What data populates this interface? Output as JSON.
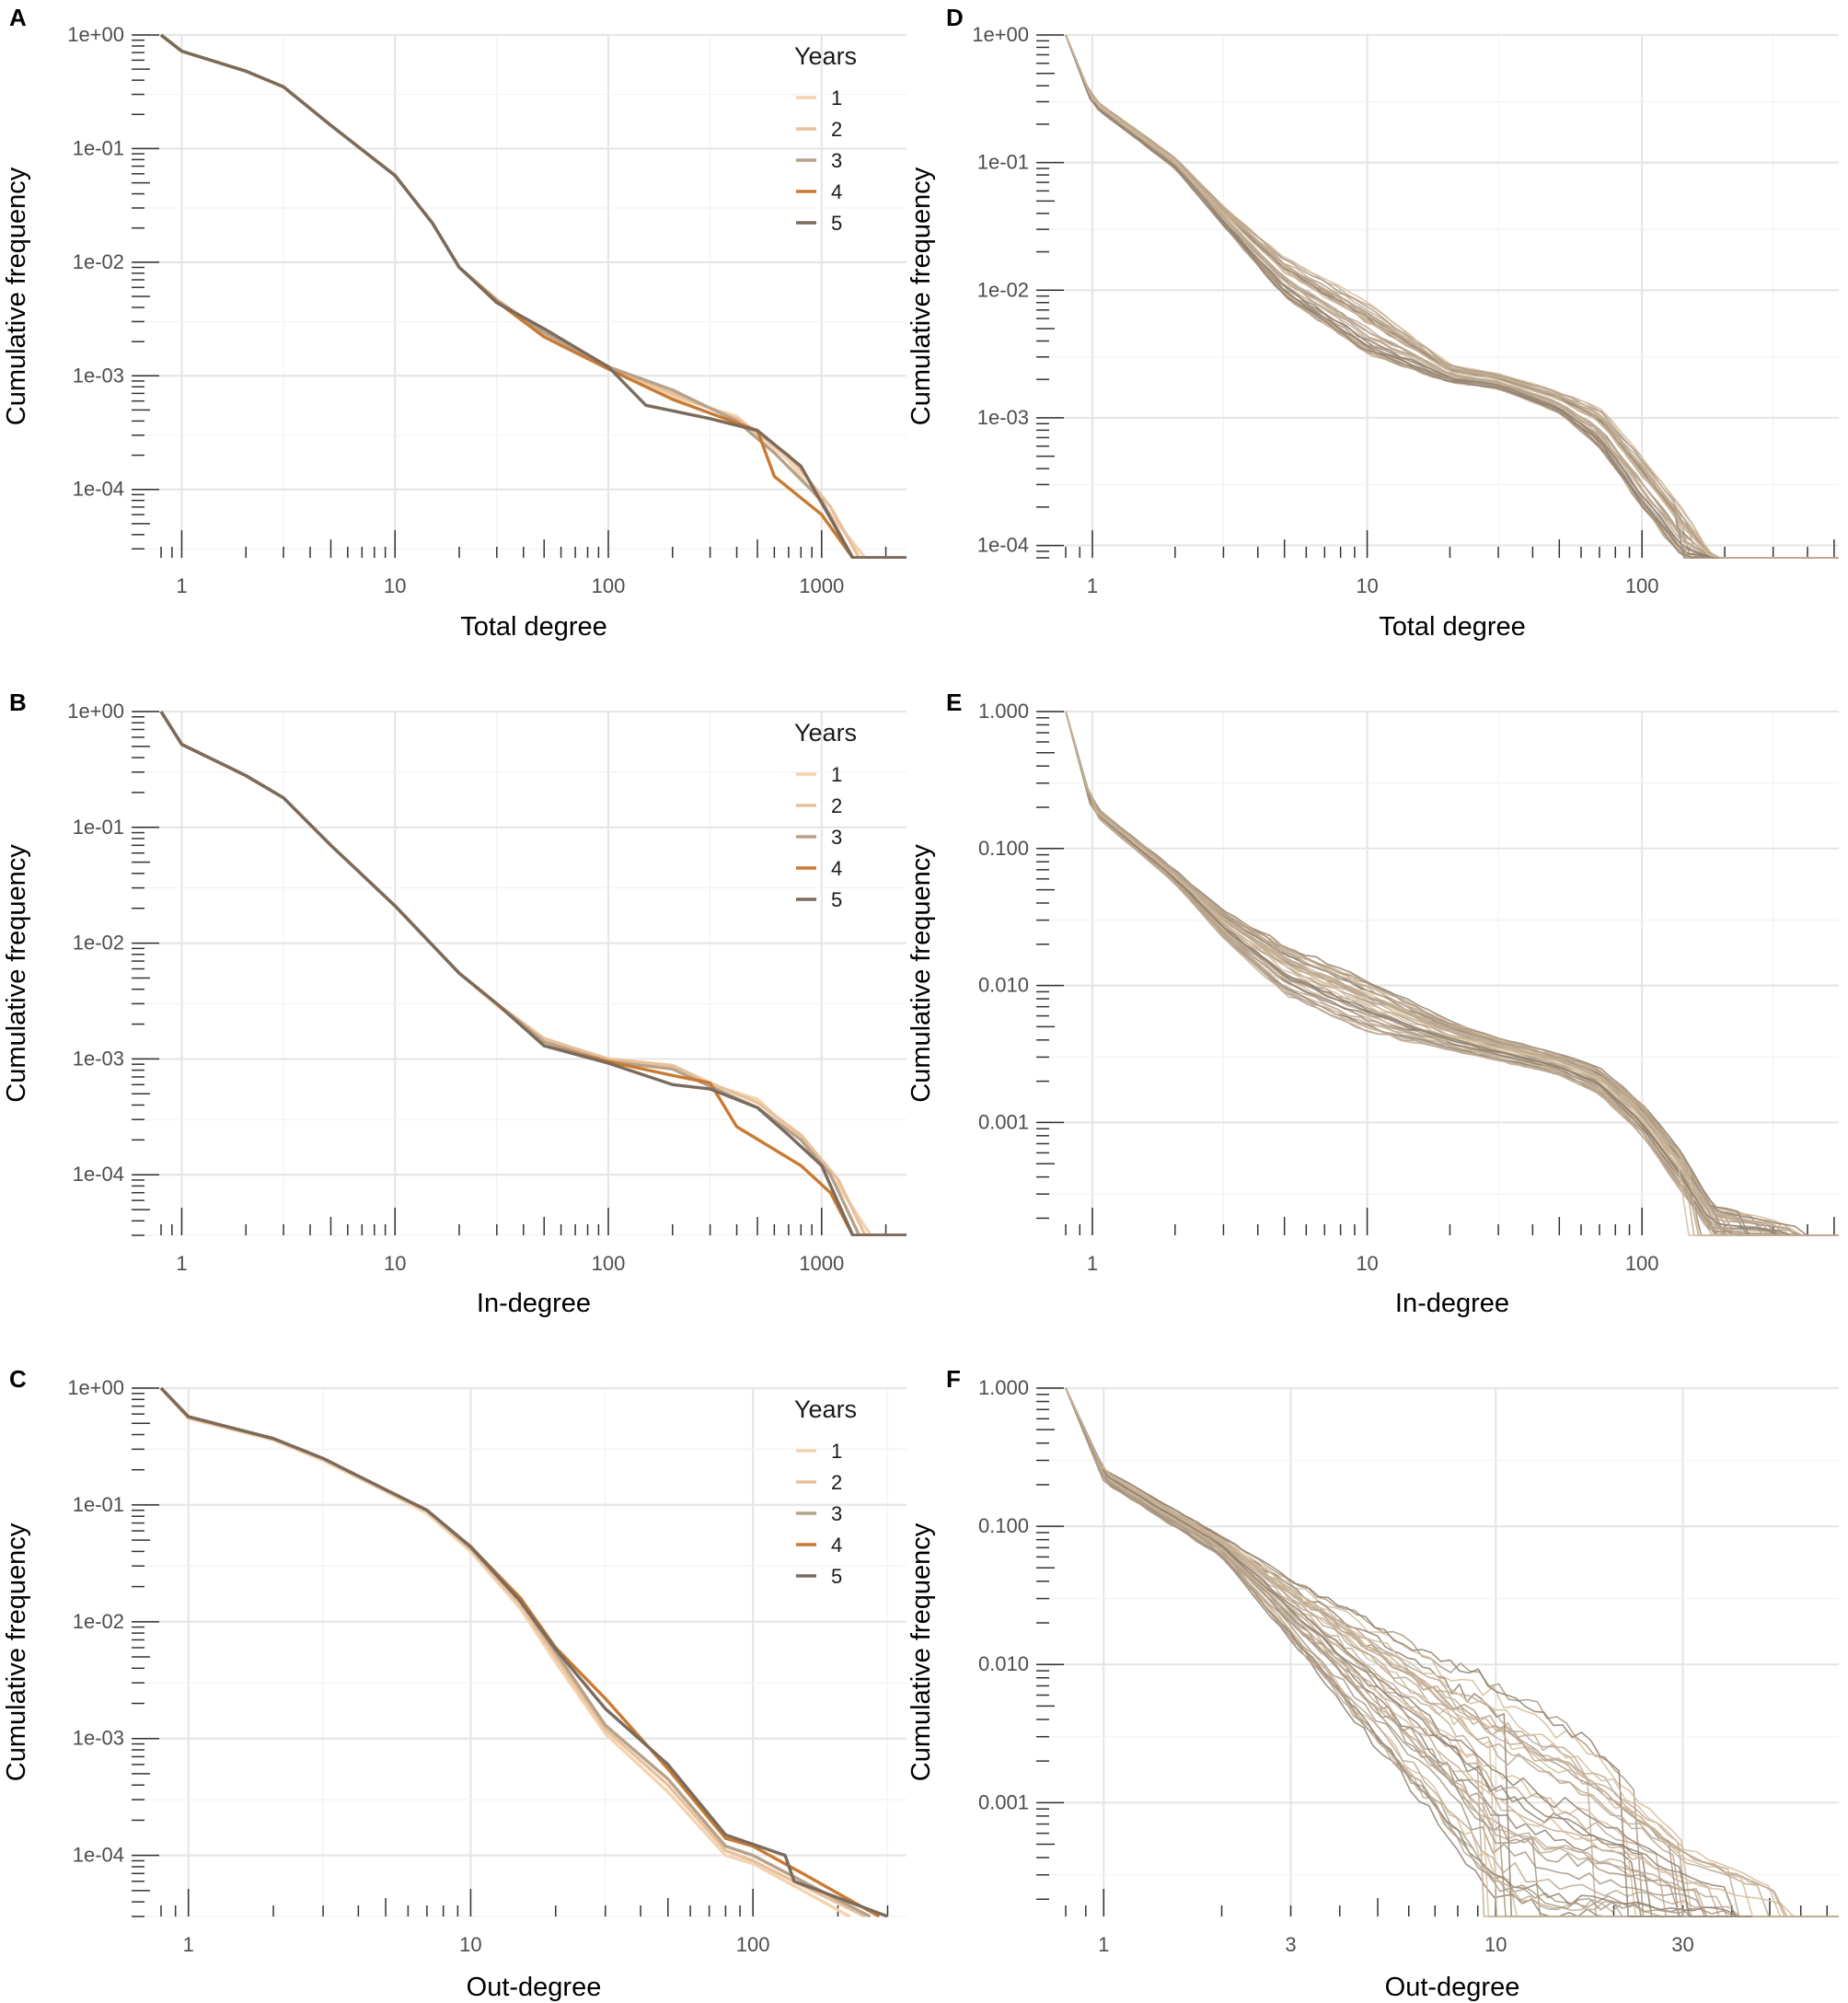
{
  "chart_data": [
    {
      "panel": "A",
      "type": "line",
      "xscale": "log",
      "yscale": "log",
      "xlabel": "Total degree",
      "ylabel": "Cumulative frequency",
      "xlim": [
        0.8,
        2500
      ],
      "ylim": [
        2.5e-05,
        1
      ],
      "x_ticks": [
        {
          "v": 1,
          "label": "1"
        },
        {
          "v": 10,
          "label": "10"
        },
        {
          "v": 100,
          "label": "100"
        },
        {
          "v": 1000,
          "label": "1000"
        }
      ],
      "y_ticks": [
        {
          "v": 1,
          "label": "1e+00"
        },
        {
          "v": 0.1,
          "label": "1e-01"
        },
        {
          "v": 0.01,
          "label": "1e-02"
        },
        {
          "v": 0.001,
          "label": "1e-03"
        },
        {
          "v": 0.0001,
          "label": "1e-04"
        }
      ],
      "legend": {
        "title": "Years",
        "position": "top-right"
      },
      "series": [
        {
          "name": "1",
          "color": "#f3d3b0",
          "x": [
            0.8,
            1,
            2,
            3,
            5,
            10,
            15,
            20,
            30,
            50,
            100,
            200,
            400,
            700,
            1100,
            1600,
            2500
          ],
          "y": [
            1,
            0.72,
            0.48,
            0.35,
            0.16,
            0.058,
            0.022,
            0.009,
            0.0046,
            0.0023,
            0.00115,
            0.00066,
            0.00044,
            0.00018,
            6e-05,
            2.5e-05,
            2.5e-05
          ]
        },
        {
          "name": "2",
          "color": "#e8c09a",
          "x": [
            0.8,
            1,
            2,
            3,
            5,
            10,
            15,
            20,
            30,
            50,
            100,
            200,
            400,
            700,
            1100,
            1500,
            2500
          ],
          "y": [
            1,
            0.72,
            0.48,
            0.35,
            0.16,
            0.058,
            0.022,
            0.009,
            0.0047,
            0.0024,
            0.0012,
            0.0007,
            0.00042,
            0.0002,
            7e-05,
            2.5e-05,
            2.5e-05
          ]
        },
        {
          "name": "3",
          "color": "#b6a18a",
          "x": [
            0.8,
            1,
            2,
            3,
            5,
            10,
            15,
            20,
            30,
            50,
            100,
            200,
            400,
            600,
            1000,
            1400,
            2500
          ],
          "y": [
            1,
            0.72,
            0.48,
            0.35,
            0.16,
            0.058,
            0.022,
            0.009,
            0.0046,
            0.0024,
            0.0012,
            0.00075,
            0.0004,
            0.00021,
            8e-05,
            2.5e-05,
            2.5e-05
          ]
        },
        {
          "name": "4",
          "color": "#c97a32",
          "x": [
            0.8,
            1,
            2,
            3,
            5,
            10,
            15,
            20,
            30,
            50,
            100,
            200,
            500,
            600,
            1000,
            1400,
            2500
          ],
          "y": [
            1,
            0.72,
            0.48,
            0.35,
            0.16,
            0.058,
            0.022,
            0.009,
            0.0045,
            0.0022,
            0.00115,
            0.00062,
            0.00033,
            0.00013,
            6e-05,
            2.5e-05,
            2.5e-05
          ]
        },
        {
          "name": "5",
          "color": "#7a6b5d",
          "x": [
            0.8,
            1,
            2,
            3,
            5,
            10,
            15,
            20,
            30,
            50,
            100,
            150,
            300,
            500,
            800,
            1400,
            2500
          ],
          "y": [
            1,
            0.72,
            0.48,
            0.35,
            0.16,
            0.058,
            0.022,
            0.009,
            0.0044,
            0.0026,
            0.0012,
            0.00055,
            0.00042,
            0.00033,
            0.00016,
            2.5e-05,
            2.5e-05
          ]
        }
      ]
    },
    {
      "panel": "B",
      "type": "line",
      "xscale": "log",
      "yscale": "log",
      "xlabel": "In-degree",
      "ylabel": "Cumulative frequency",
      "xlim": [
        0.8,
        2500
      ],
      "ylim": [
        3e-05,
        1
      ],
      "x_ticks": [
        {
          "v": 1,
          "label": "1"
        },
        {
          "v": 10,
          "label": "10"
        },
        {
          "v": 100,
          "label": "100"
        },
        {
          "v": 1000,
          "label": "1000"
        }
      ],
      "y_ticks": [
        {
          "v": 1,
          "label": "1e+00"
        },
        {
          "v": 0.1,
          "label": "1e-01"
        },
        {
          "v": 0.01,
          "label": "1e-02"
        },
        {
          "v": 0.001,
          "label": "1e-03"
        },
        {
          "v": 0.0001,
          "label": "1e-04"
        }
      ],
      "legend": {
        "title": "Years",
        "position": "top-right"
      },
      "series": [
        {
          "name": "1",
          "color": "#f3d3b0",
          "x": [
            0.8,
            1,
            2,
            3,
            5,
            10,
            20,
            30,
            50,
            100,
            200,
            300,
            500,
            800,
            1200,
            1700,
            2500
          ],
          "y": [
            1,
            0.52,
            0.28,
            0.18,
            0.07,
            0.021,
            0.0055,
            0.0029,
            0.0014,
            0.00098,
            0.00085,
            0.0006,
            0.00045,
            0.0002,
            8e-05,
            3e-05,
            3e-05
          ]
        },
        {
          "name": "2",
          "color": "#e8c09a",
          "x": [
            0.8,
            1,
            2,
            3,
            5,
            10,
            20,
            30,
            50,
            100,
            200,
            300,
            500,
            800,
            1200,
            1600,
            2500
          ],
          "y": [
            1,
            0.52,
            0.28,
            0.18,
            0.07,
            0.021,
            0.0055,
            0.003,
            0.0015,
            0.001,
            0.00088,
            0.00062,
            0.00042,
            0.00022,
            9e-05,
            3e-05,
            3e-05
          ]
        },
        {
          "name": "3",
          "color": "#b6a18a",
          "x": [
            0.8,
            1,
            2,
            3,
            5,
            10,
            20,
            30,
            50,
            100,
            200,
            300,
            500,
            800,
            1100,
            1500,
            2500
          ],
          "y": [
            1,
            0.52,
            0.28,
            0.18,
            0.07,
            0.021,
            0.0055,
            0.003,
            0.0014,
            0.00095,
            0.00082,
            0.00058,
            0.00038,
            0.0002,
            0.0001,
            3e-05,
            3e-05
          ]
        },
        {
          "name": "4",
          "color": "#c97a32",
          "x": [
            0.8,
            1,
            2,
            3,
            5,
            10,
            20,
            30,
            50,
            100,
            200,
            300,
            400,
            800,
            1100,
            1400,
            2500
          ],
          "y": [
            1,
            0.52,
            0.28,
            0.18,
            0.07,
            0.021,
            0.0055,
            0.003,
            0.0013,
            0.00095,
            0.00072,
            0.00062,
            0.00026,
            0.00012,
            7e-05,
            3e-05,
            3e-05
          ]
        },
        {
          "name": "5",
          "color": "#7a6b5d",
          "x": [
            0.8,
            1,
            2,
            3,
            5,
            10,
            20,
            30,
            50,
            100,
            200,
            300,
            500,
            700,
            1000,
            1400,
            2500
          ],
          "y": [
            1,
            0.52,
            0.28,
            0.18,
            0.07,
            0.021,
            0.0055,
            0.003,
            0.0013,
            0.00092,
            0.0006,
            0.00055,
            0.00038,
            0.00022,
            0.00012,
            3e-05,
            3e-05
          ]
        }
      ]
    },
    {
      "panel": "C",
      "type": "line",
      "xscale": "log",
      "yscale": "log",
      "xlabel": "Out-degree",
      "ylabel": "Cumulative frequency",
      "xlim": [
        0.8,
        350
      ],
      "ylim": [
        3e-05,
        1
      ],
      "x_ticks": [
        {
          "v": 1,
          "label": "1"
        },
        {
          "v": 10,
          "label": "10"
        },
        {
          "v": 100,
          "label": "100"
        }
      ],
      "y_ticks": [
        {
          "v": 1,
          "label": "1e+00"
        },
        {
          "v": 0.1,
          "label": "1e-01"
        },
        {
          "v": 0.01,
          "label": "1e-02"
        },
        {
          "v": 0.001,
          "label": "1e-03"
        },
        {
          "v": 0.0001,
          "label": "1e-04"
        }
      ],
      "legend": {
        "title": "Years",
        "position": "top-right"
      },
      "series": [
        {
          "name": "1",
          "color": "#f3d3b0",
          "x": [
            0.8,
            1,
            2,
            3,
            5,
            7,
            10,
            15,
            20,
            30,
            50,
            80,
            100,
            150,
            220
          ],
          "y": [
            1,
            0.55,
            0.36,
            0.24,
            0.13,
            0.085,
            0.04,
            0.013,
            0.0045,
            0.0011,
            0.00035,
            0.0001,
            8.5e-05,
            5e-05,
            3e-05
          ]
        },
        {
          "name": "2",
          "color": "#e8c09a",
          "x": [
            0.8,
            1,
            2,
            3,
            5,
            7,
            10,
            15,
            20,
            30,
            50,
            80,
            100,
            150,
            250
          ],
          "y": [
            1,
            0.56,
            0.37,
            0.25,
            0.135,
            0.09,
            0.042,
            0.014,
            0.005,
            0.0012,
            0.0004,
            0.00011,
            9e-05,
            5.5e-05,
            3e-05
          ]
        },
        {
          "name": "3",
          "color": "#b6a18a",
          "x": [
            0.8,
            1,
            2,
            3,
            5,
            7,
            10,
            15,
            20,
            30,
            50,
            80,
            100,
            150,
            260
          ],
          "y": [
            1,
            0.57,
            0.37,
            0.25,
            0.135,
            0.09,
            0.043,
            0.015,
            0.0055,
            0.0013,
            0.00045,
            0.00012,
            0.0001,
            6e-05,
            3e-05
          ]
        },
        {
          "name": "4",
          "color": "#c97a32",
          "x": [
            0.8,
            1,
            2,
            3,
            5,
            7,
            10,
            15,
            20,
            30,
            50,
            80,
            100,
            150,
            280
          ],
          "y": [
            1,
            0.57,
            0.37,
            0.25,
            0.135,
            0.09,
            0.044,
            0.016,
            0.006,
            0.0022,
            0.00055,
            0.00014,
            0.00012,
            7e-05,
            3e-05
          ]
        },
        {
          "name": "5",
          "color": "#7a6b5d",
          "x": [
            0.8,
            1,
            2,
            3,
            5,
            7,
            10,
            15,
            20,
            30,
            50,
            80,
            130,
            140,
            300
          ],
          "y": [
            1,
            0.57,
            0.37,
            0.25,
            0.135,
            0.09,
            0.044,
            0.015,
            0.0058,
            0.0018,
            0.0006,
            0.00015,
            0.0001,
            6e-05,
            3e-05
          ]
        }
      ]
    },
    {
      "panel": "D",
      "type": "line",
      "xscale": "log",
      "yscale": "log",
      "xlabel": "Total degree",
      "ylabel": "Cumulative frequency",
      "xlim": [
        0.8,
        520
      ],
      "ylim": [
        8e-05,
        1
      ],
      "x_ticks": [
        {
          "v": 1,
          "label": "1"
        },
        {
          "v": 10,
          "label": "10"
        },
        {
          "v": 100,
          "label": "100"
        }
      ],
      "y_ticks": [
        {
          "v": 1,
          "label": "1e+00"
        },
        {
          "v": 0.1,
          "label": "1e-01"
        },
        {
          "v": 0.01,
          "label": "1e-02"
        },
        {
          "v": 0.001,
          "label": "1e-03"
        },
        {
          "v": 0.0001,
          "label": "1e-04"
        }
      ],
      "bundle": {
        "n_lines": 40,
        "colors": [
          "#a89683",
          "#bca890",
          "#8e7f70",
          "#d6bc9a",
          "#c0ab94"
        ],
        "x": [
          0.8,
          1,
          2,
          3,
          5,
          10,
          20,
          30,
          50,
          70,
          100,
          140,
          180,
          520
        ],
        "y_low": [
          1,
          0.28,
          0.09,
          0.032,
          0.009,
          0.0032,
          0.0019,
          0.0017,
          0.0011,
          0.0006,
          0.0002,
          8e-05,
          8e-05,
          8e-05
        ],
        "y_high": [
          1,
          0.32,
          0.11,
          0.045,
          0.018,
          0.008,
          0.0026,
          0.0022,
          0.0016,
          0.0012,
          0.0005,
          0.0002,
          8e-05,
          8e-05
        ],
        "x_end_range": [
          140,
          400
        ]
      }
    },
    {
      "panel": "E",
      "type": "line",
      "xscale": "log",
      "yscale": "log",
      "xlabel": "In-degree",
      "ylabel": "Cumulative frequency",
      "xlim": [
        0.8,
        520
      ],
      "ylim": [
        0.00015,
        1
      ],
      "x_ticks": [
        {
          "v": 1,
          "label": "1"
        },
        {
          "v": 10,
          "label": "10"
        },
        {
          "v": 100,
          "label": "100"
        }
      ],
      "y_ticks": [
        {
          "v": 1,
          "label": "1.000"
        },
        {
          "v": 0.1,
          "label": "0.100"
        },
        {
          "v": 0.01,
          "label": "0.010"
        },
        {
          "v": 0.001,
          "label": "0.001"
        }
      ],
      "bundle": {
        "n_lines": 40,
        "colors": [
          "#a89683",
          "#bca890",
          "#8e7f70",
          "#d6bc9a",
          "#c0ab94"
        ],
        "x": [
          0.8,
          1,
          2,
          3,
          5,
          10,
          20,
          30,
          50,
          70,
          100,
          140,
          180,
          520
        ],
        "y_low": [
          1,
          0.18,
          0.055,
          0.022,
          0.0085,
          0.0045,
          0.0033,
          0.0028,
          0.0022,
          0.0016,
          0.0008,
          0.0003,
          0.00015,
          0.00015
        ],
        "y_high": [
          1,
          0.21,
          0.07,
          0.035,
          0.02,
          0.011,
          0.0055,
          0.0042,
          0.0032,
          0.0025,
          0.0014,
          0.0006,
          0.00025,
          0.00015
        ],
        "x_end_range": [
          140,
          400
        ]
      }
    },
    {
      "panel": "F",
      "type": "line",
      "xscale": "log",
      "yscale": "log",
      "xlabel": "Out-degree",
      "ylabel": "Cumulative frequency",
      "xlim": [
        0.8,
        75
      ],
      "ylim": [
        0.00015,
        1
      ],
      "x_ticks": [
        {
          "v": 1,
          "label": "1"
        },
        {
          "v": 3,
          "label": "3"
        },
        {
          "v": 10,
          "label": "10"
        },
        {
          "v": 30,
          "label": "30"
        }
      ],
      "y_ticks": [
        {
          "v": 1,
          "label": "1.000"
        },
        {
          "v": 0.1,
          "label": "0.100"
        },
        {
          "v": 0.01,
          "label": "0.010"
        },
        {
          "v": 0.001,
          "label": "0.001"
        }
      ],
      "bundle": {
        "n_lines": 40,
        "colors": [
          "#a89683",
          "#bca890",
          "#8e7f70",
          "#d6bc9a",
          "#c0ab94"
        ],
        "x": [
          0.8,
          1,
          2,
          3,
          5,
          7,
          10,
          15,
          20,
          30,
          75
        ],
        "y_low": [
          1,
          0.21,
          0.06,
          0.015,
          0.0025,
          0.0008,
          0.0002,
          0.00015,
          0.00015,
          0.00015,
          0.00015
        ],
        "y_high": [
          1,
          0.26,
          0.085,
          0.042,
          0.02,
          0.012,
          0.008,
          0.004,
          0.002,
          0.0006,
          0.00015
        ],
        "x_end_range": [
          9,
          60
        ]
      }
    }
  ]
}
